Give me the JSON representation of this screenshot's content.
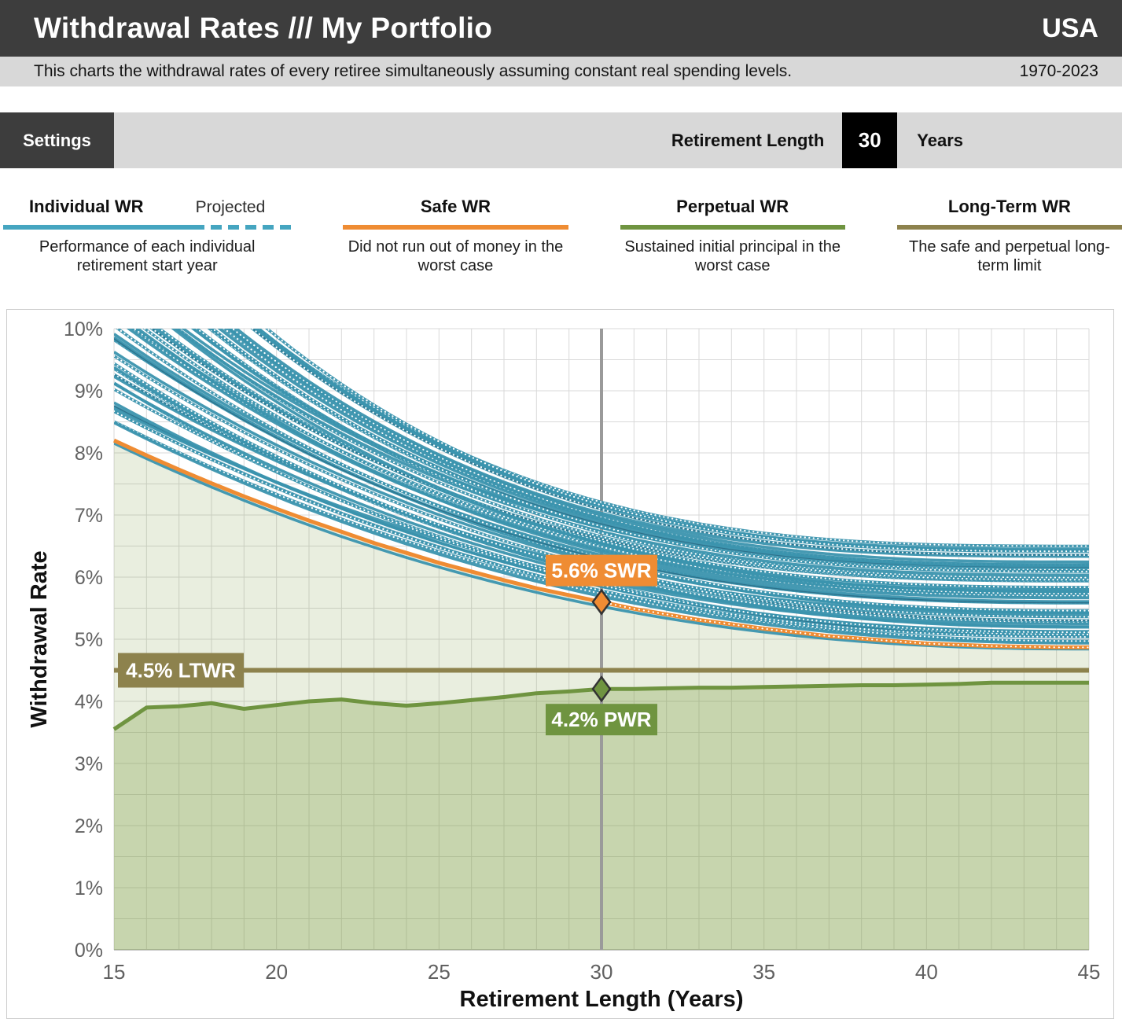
{
  "header": {
    "title": "Withdrawal Rates /// My Portfolio",
    "region": "USA",
    "subtitle": "This charts the withdrawal rates of every retiree simultaneously assuming constant real spending levels.",
    "year_range": "1970-2023"
  },
  "controls": {
    "settings_label": "Settings",
    "retirement_length_label": "Retirement Length",
    "retirement_length_value": "30",
    "retirement_length_unit": "Years"
  },
  "legend": {
    "individual": {
      "title": "Individual WR",
      "projected_label": "Projected",
      "description": "Performance of each individual retirement start year"
    },
    "safe": {
      "title": "Safe WR",
      "description": "Did not run out of money in the worst case"
    },
    "perpetual": {
      "title": "Perpetual WR",
      "description": "Sustained initial principal in the worst case"
    },
    "long_term": {
      "title": "Long-Term WR",
      "description": "The safe and perpetual long-term limit"
    }
  },
  "colors": {
    "header_bg": "#3d3d3d",
    "bar_bg": "#d8d8d8",
    "value_bg": "#000000",
    "individual_line": "#3b93ae",
    "individual_dark": "#2a6b85",
    "individual_legend": "#45a5c0",
    "safe": "#ef8c33",
    "perpetual": "#6f9440",
    "long_term": "#8d824d",
    "marker": "#9a9a9a",
    "grid": "#d9d9d9",
    "fill_green": "#7a9a40",
    "tick_text": "#616161",
    "axis_title_text": "#111111"
  },
  "chart_data": {
    "type": "line",
    "xlabel": "Retirement Length (Years)",
    "ylabel": "Withdrawal Rate",
    "xlim": [
      15,
      45
    ],
    "ylim": [
      0,
      10
    ],
    "x_ticks": [
      15,
      20,
      25,
      30,
      35,
      40,
      45
    ],
    "x_tick_labels": [
      "15",
      "20",
      "25",
      "30",
      "35",
      "40",
      "45"
    ],
    "y_ticks": [
      0,
      1,
      2,
      3,
      4,
      5,
      6,
      7,
      8,
      9,
      10
    ],
    "y_tick_labels": [
      "0%",
      "1%",
      "2%",
      "3%",
      "4%",
      "5%",
      "6%",
      "7%",
      "8%",
      "9%",
      "10%"
    ],
    "grid": {
      "x_step": 1,
      "y_step": 0.5
    },
    "x_start": 15,
    "x_step": 1,
    "series": [
      {
        "name": "Safe WR",
        "color": "#ef8c33",
        "values": [
          8.2,
          7.96,
          7.73,
          7.51,
          7.3,
          7.1,
          6.91,
          6.73,
          6.55,
          6.39,
          6.23,
          6.09,
          5.95,
          5.82,
          5.71,
          5.6,
          5.49,
          5.4,
          5.31,
          5.24,
          5.17,
          5.11,
          5.05,
          5.01,
          4.97,
          4.93,
          4.91,
          4.89,
          4.88,
          4.87,
          4.87
        ],
        "projected_from_x": 30
      },
      {
        "name": "Perpetual WR",
        "color": "#6f9440",
        "values": [
          3.55,
          3.9,
          3.92,
          3.97,
          3.88,
          3.94,
          4.0,
          4.03,
          3.97,
          3.93,
          3.97,
          4.02,
          4.07,
          4.13,
          4.16,
          4.2,
          4.2,
          4.21,
          4.22,
          4.22,
          4.23,
          4.24,
          4.25,
          4.26,
          4.26,
          4.27,
          4.28,
          4.3,
          4.3,
          4.3,
          4.3
        ]
      },
      {
        "name": "Long-Term WR",
        "color": "#8d824d",
        "constant_value": 4.5
      }
    ],
    "individual": {
      "name": "Individual WR",
      "cohort_years": "1970-2023",
      "count": 54,
      "start_value_range": [
        8.35,
        12.3
      ],
      "end_value_range": [
        4.93,
        6.5
      ],
      "curve_exponent_range": [
        2.2,
        3.05
      ],
      "dotted_fraction": 0.5,
      "note": "Bundle of per-cohort curves between the Safe WR envelope (bottom) and ~7.2% at 30y / 6.5% at 45y (top), clipped at 10%; dotted segments are projected years"
    },
    "marker": {
      "x": 30
    },
    "annotations": [
      {
        "id": "swr",
        "text": "5.6% SWR",
        "x": 30,
        "y": 5.6
      },
      {
        "id": "pwr",
        "text": "4.2% PWR",
        "x": 30,
        "y": 4.2
      },
      {
        "id": "ltwr",
        "text": "4.5% LTWR",
        "y": 4.5
      }
    ]
  }
}
